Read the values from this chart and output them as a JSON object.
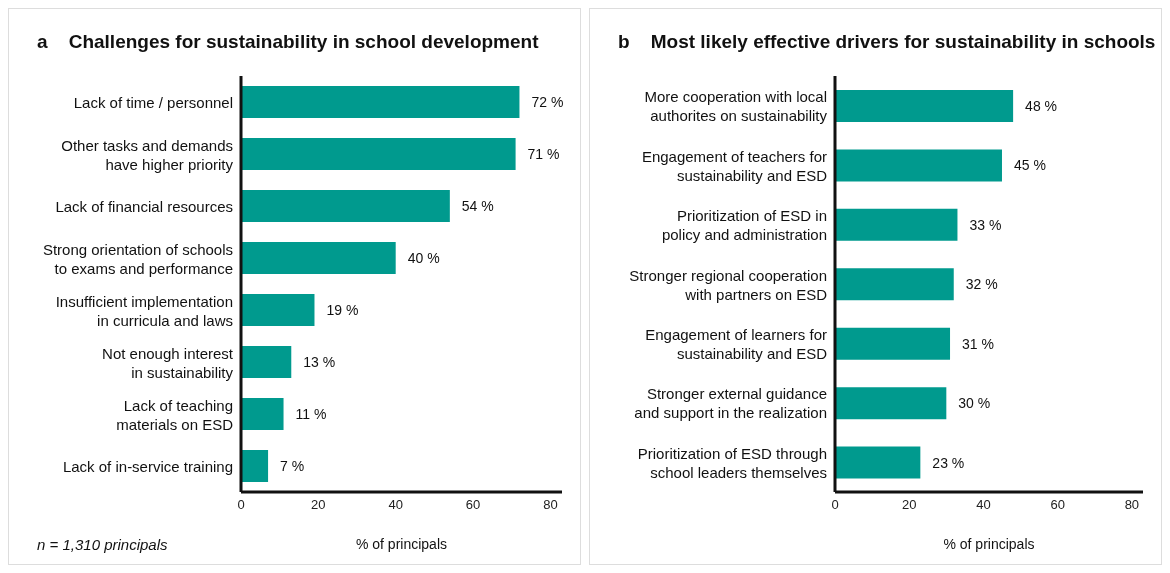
{
  "chart_data": [
    {
      "type": "bar",
      "orientation": "horizontal",
      "title": "a    Challenges for sustainability in school development",
      "categories": [
        "Lack of time / personnel",
        "Other tasks and demands\nhave higher priority",
        "Lack of financial resources",
        "Strong orientation of schools\nto exams and performance",
        "Insufficient implementation\nin curricula and laws",
        "Not enough interest\nin sustainability",
        "Lack of teaching\nmaterials on ESD",
        "Lack of in-service training"
      ],
      "values": [
        72,
        71,
        54,
        40,
        19,
        13,
        11,
        7
      ],
      "value_labels": [
        "72 %",
        "71 %",
        "54 %",
        "40 %",
        "19 %",
        "13 %",
        "11 %",
        "7 %"
      ],
      "color": "#009a8e",
      "xlim": [
        0,
        83
      ],
      "xticks": [
        0,
        20,
        40,
        60,
        80
      ],
      "xlabel": "% of principals",
      "annotations": [
        "n = 1,310 principals"
      ]
    },
    {
      "type": "bar",
      "orientation": "horizontal",
      "title": "b    Most likely effective drivers for sustainability in schools",
      "categories": [
        "More cooperation with local\nauthorites on sustainability",
        "Engagement of teachers for\nsustainability and ESD",
        "Prioritization of ESD in\npolicy and administration",
        "Stronger regional cooperation\nwith partners on ESD",
        "Engagement of learners for\nsustainability and ESD",
        "Stronger external guidance\nand support in the realization",
        "Prioritization of ESD through\nschool leaders themselves"
      ],
      "values": [
        48,
        45,
        33,
        32,
        31,
        30,
        23
      ],
      "value_labels": [
        "48 %",
        "45 %",
        "33 %",
        "32 %",
        "31 %",
        "30 %",
        "23 %"
      ],
      "color": "#009a8e",
      "xlim": [
        0,
        83
      ],
      "xticks": [
        0,
        20,
        40,
        60,
        80
      ],
      "xlabel": "% of principals"
    }
  ]
}
